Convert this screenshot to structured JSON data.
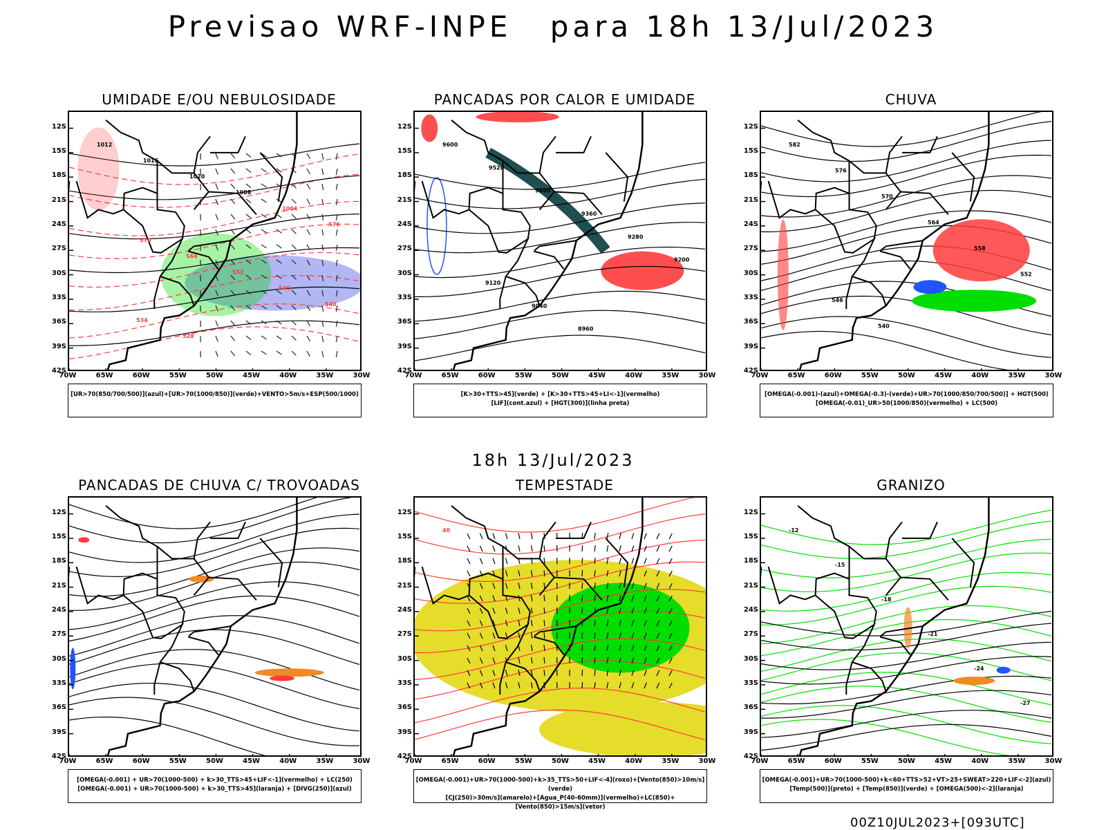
{
  "header": {
    "title_left": "Previsao WRF-INPE",
    "title_right": "para 18h 13/Jul/2023"
  },
  "mid_date": "18h 13/Jul/2023",
  "footer": "00Z10JUL2023+[093UTC]",
  "axes": {
    "lat_ticks": [
      "12S",
      "15S",
      "18S",
      "21S",
      "24S",
      "27S",
      "30S",
      "33S",
      "36S",
      "39S",
      "42S"
    ],
    "lon_ticks": [
      "70W",
      "65W",
      "60W",
      "55W",
      "50W",
      "45W",
      "40W",
      "35W",
      "30W"
    ]
  },
  "panels": [
    {
      "title": "UMIDADE E/OU NEBULOSIDADE",
      "legend": [
        "[UR>70(850/700/500)](azul)+[UR>70(1000/850)](verde)+VENTO>5m/s+ESP(500/1000)"
      ],
      "contour_labels": [
        "1012",
        "1016",
        "1020",
        "1008",
        "1004",
        "576",
        "570",
        "564",
        "552",
        "546",
        "540",
        "534",
        "528"
      ]
    },
    {
      "title": "PANCADAS POR CALOR E UMIDADE",
      "legend": [
        "[K>30+TTS>45](verde) + [K>30+TTS>45+LI<-1](vermelho)",
        "[LIF](cont.azul) + [HGT(300)](linha preta)"
      ],
      "contour_labels": [
        "9600",
        "9520",
        "9440",
        "9360",
        "9280",
        "9200",
        "9120",
        "9040",
        "8960"
      ]
    },
    {
      "title": "CHUVA",
      "legend": [
        "[OMEGA(-0.001)-(azul)+OMEGA(-0.3)-(verde)+UR>70(1000/850/700/500)] + HGT(500)",
        "[OMEGA(-0.01)_UR>50(1000/850)(vermelho) + LC(500)"
      ],
      "contour_labels": [
        "582",
        "576",
        "570",
        "564",
        "558",
        "552",
        "546",
        "540"
      ]
    },
    {
      "title": "PANCADAS DE CHUVA C/ TROVOADAS",
      "legend": [
        "[OMEGA(-0.001) + UR>70(1000-500) + k>30_TTS>45+LIF<-1](vermelho) + LC(250)",
        "[OMEGA(-0.001) + UR>70(1000-500) + k>30_TTS>45](laranja) + [DIVG(250)](azul)"
      ],
      "contour_labels": []
    },
    {
      "title": "TEMPESTADE",
      "legend": [
        "[OMEGA(-0.001)+UR>70(1000-500)+k>35_TTS>50+LIF<-4](roxo)+[Vento(850)>10m/s](verde)",
        "[CJ(250)>30m/s](amarelo)+[Agua_P(40-60mm)](vermelho)+LC(850)+[Vento(850)>15m/s](vetor)"
      ],
      "contour_labels": [
        "40"
      ]
    },
    {
      "title": "GRANIZO",
      "legend": [
        "[OMEGA(-0.001)+UR>70(1000-500)+k<60+TTS>52+VT>25+SWEAT>220+LIF<-2](azul)",
        "[Temp(500)](preto) + [Temp(850)](verde) + [OMEGA(500)<-2](laranja)"
      ],
      "contour_labels": [
        "-12",
        "-15",
        "-18",
        "-21",
        "-24",
        "-27"
      ]
    }
  ],
  "colors": {
    "red": "#ff3b3b",
    "green": "#00dd00",
    "blue": "#2255ff",
    "lavender": "#9fa4f0",
    "teal": "#1f4f4f",
    "yellow": "#e6dc2a",
    "orange": "#f08a24"
  }
}
